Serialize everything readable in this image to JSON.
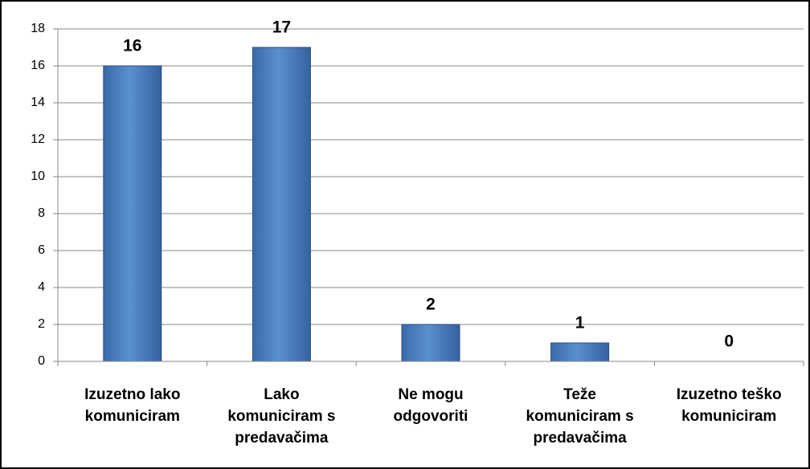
{
  "chart_data": {
    "type": "bar",
    "categories": [
      "Izuzetno lako komuniciram",
      "Lako komuniciram s predavačima",
      "Ne mogu odgovoriti",
      "Teže komuniciram s predavačima",
      "Izuzetno teško komuniciram"
    ],
    "values": [
      16,
      17,
      2,
      1,
      0
    ],
    "color": "#4f81bd",
    "ylim": [
      0,
      18
    ],
    "yticks": [
      0,
      2,
      4,
      6,
      8,
      10,
      12,
      14,
      16,
      18
    ],
    "grid": true
  }
}
